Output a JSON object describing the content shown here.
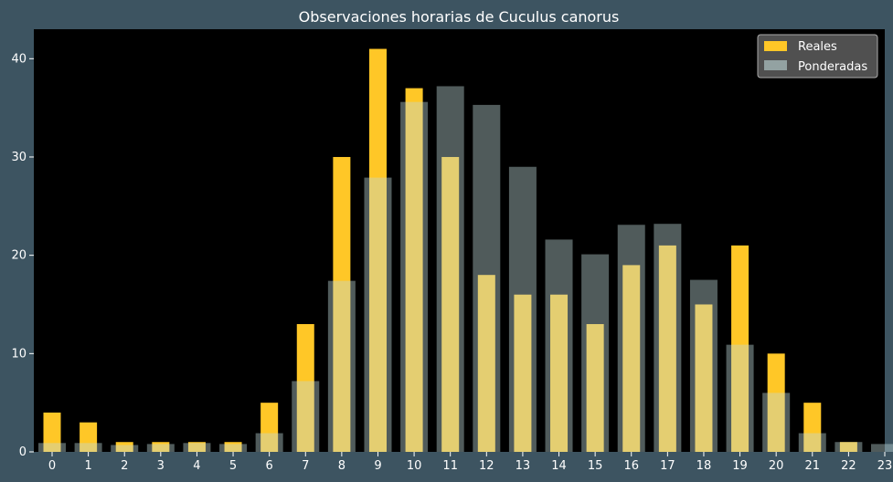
{
  "chart_data": {
    "type": "bar",
    "title": "Observaciones horarias de Cuculus canorus",
    "xlabel": "",
    "ylabel": "",
    "categories": [
      "0",
      "1",
      "2",
      "3",
      "4",
      "5",
      "6",
      "7",
      "8",
      "9",
      "10",
      "11",
      "12",
      "13",
      "14",
      "15",
      "16",
      "17",
      "18",
      "19",
      "20",
      "21",
      "22",
      "23"
    ],
    "series": [
      {
        "name": "Reales",
        "color": "#ffc727",
        "values": [
          4,
          3,
          1,
          1,
          1,
          1,
          5,
          13,
          30,
          41,
          37,
          30,
          18,
          16,
          16,
          13,
          19,
          21,
          15,
          21,
          10,
          5,
          1,
          0
        ]
      },
      {
        "name": "Ponderadas",
        "color": "#bfd9d9",
        "values": [
          0.9,
          0.9,
          0.7,
          0.8,
          0.9,
          0.8,
          1.9,
          7.2,
          17.4,
          27.9,
          35.6,
          37.2,
          35.3,
          29.0,
          21.6,
          20.1,
          23.1,
          23.2,
          17.5,
          10.9,
          6.0,
          1.9,
          1.0,
          0.8
        ]
      }
    ],
    "ylim": [
      0,
      43
    ],
    "yticks": [
      0,
      10,
      20,
      30,
      40
    ],
    "grid": false,
    "legend_position": "top-right",
    "background_color": "#000000",
    "figure_color": "#3d5461"
  }
}
